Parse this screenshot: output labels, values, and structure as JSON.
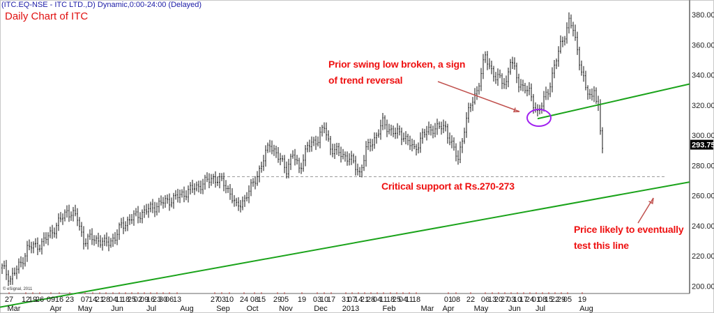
{
  "header": {
    "symbol_line": "(ITC.EQ-NSE - ITC LTD.,D) Dynamic,0:00-24:00 (Delayed)",
    "chart_title": "Daily Chart of ITC",
    "copyright": "© eSignal, 2011"
  },
  "annotations": {
    "swing_low_line1": "Prior swing low broken, a sign",
    "swing_low_line2": "of trend reversal",
    "support": "Critical support at Rs.270-273",
    "test_line1": "Price likely to eventually",
    "test_line2": "test this line"
  },
  "colors": {
    "annotation_text": "#ee1111",
    "trendline": "#1aa31a",
    "ellipse": "#a020f0",
    "arrow": "#c0504d",
    "bars": "#111111",
    "support_line": "#999999"
  },
  "chart_data": {
    "type": "ohlc-bar",
    "title": "Daily Chart of ITC",
    "ylim": [
      195,
      385
    ],
    "yticks": [
      "200.00",
      "220.00",
      "240.00",
      "260.00",
      "280.00",
      "300.00",
      "320.00",
      "340.00",
      "360.00",
      "380.00"
    ],
    "last_price": "293.75",
    "x_day_labels": [
      "27",
      "12",
      "19",
      "26",
      "09",
      "16",
      "23",
      "07",
      "14",
      "21",
      "28",
      "04",
      "11",
      "18",
      "25",
      "02",
      "09",
      "16",
      "23",
      "30",
      "06",
      "13",
      "27",
      "03",
      "10",
      "24",
      "08",
      "15",
      "29",
      "05",
      "19",
      "03",
      "10",
      "17",
      "31",
      "07",
      "14",
      "21",
      "28",
      "04",
      "11",
      "18",
      "25",
      "04",
      "11",
      "18",
      "01",
      "08",
      "22",
      "06",
      "13",
      "20",
      "27",
      "03",
      "10",
      "17",
      "24",
      "01",
      "08",
      "15",
      "22",
      "29",
      "05",
      "19"
    ],
    "x_month_labels": [
      "Mar",
      "Apr",
      "May",
      "Jun",
      "Jul",
      "Aug",
      "Sep",
      "Oct",
      "Nov",
      "Dec",
      "2013",
      "Feb",
      "Mar",
      "Apr",
      "May",
      "Jun",
      "Jul",
      "Aug"
    ],
    "price_path_approx": [
      [
        0,
        212
      ],
      [
        4,
        205
      ],
      [
        9,
        215
      ],
      [
        12,
        225
      ],
      [
        19,
        228
      ],
      [
        26,
        240
      ],
      [
        31,
        250
      ],
      [
        36,
        245
      ],
      [
        39,
        230
      ],
      [
        44,
        232
      ],
      [
        49,
        228
      ],
      [
        54,
        232
      ],
      [
        57,
        240
      ],
      [
        62,
        245
      ],
      [
        69,
        250
      ],
      [
        76,
        255
      ],
      [
        82,
        258
      ],
      [
        89,
        263
      ],
      [
        96,
        268
      ],
      [
        101,
        272
      ],
      [
        106,
        268
      ],
      [
        109,
        262
      ],
      [
        112,
        252
      ],
      [
        116,
        258
      ],
      [
        119,
        265
      ],
      [
        124,
        280
      ],
      [
        128,
        295
      ],
      [
        132,
        285
      ],
      [
        136,
        278
      ],
      [
        139,
        287
      ],
      [
        142,
        278
      ],
      [
        146,
        292
      ],
      [
        151,
        298
      ],
      [
        154,
        305
      ],
      [
        157,
        292
      ],
      [
        161,
        288
      ],
      [
        166,
        285
      ],
      [
        171,
        275
      ],
      [
        174,
        290
      ],
      [
        179,
        300
      ],
      [
        182,
        308
      ],
      [
        187,
        302
      ],
      [
        192,
        300
      ],
      [
        197,
        290
      ],
      [
        201,
        300
      ],
      [
        206,
        305
      ],
      [
        212,
        305
      ],
      [
        216,
        290
      ],
      [
        218,
        284
      ],
      [
        221,
        305
      ],
      [
        224,
        320
      ],
      [
        227,
        330
      ],
      [
        231,
        352
      ],
      [
        236,
        338
      ],
      [
        241,
        335
      ],
      [
        243,
        350
      ],
      [
        247,
        335
      ],
      [
        252,
        328
      ],
      [
        256,
        315
      ],
      [
        258,
        320
      ],
      [
        261,
        330
      ],
      [
        264,
        345
      ],
      [
        267,
        360
      ],
      [
        271,
        375
      ],
      [
        273,
        370
      ],
      [
        276,
        350
      ],
      [
        279,
        330
      ],
      [
        282,
        325
      ],
      [
        283,
        332
      ],
      [
        285,
        318
      ],
      [
        286,
        300
      ],
      [
        287,
        292
      ]
    ],
    "trendlines": [
      {
        "name": "long-term support trendline",
        "from": [
          -1,
          186
        ],
        "to": [
          329,
          269
        ]
      },
      {
        "name": "broken swing-low line",
        "from": [
          256,
          311
        ],
        "to": [
          329,
          334
        ]
      }
    ],
    "horizontal_support": 272.5,
    "support_zone": [
      270,
      273
    ]
  }
}
